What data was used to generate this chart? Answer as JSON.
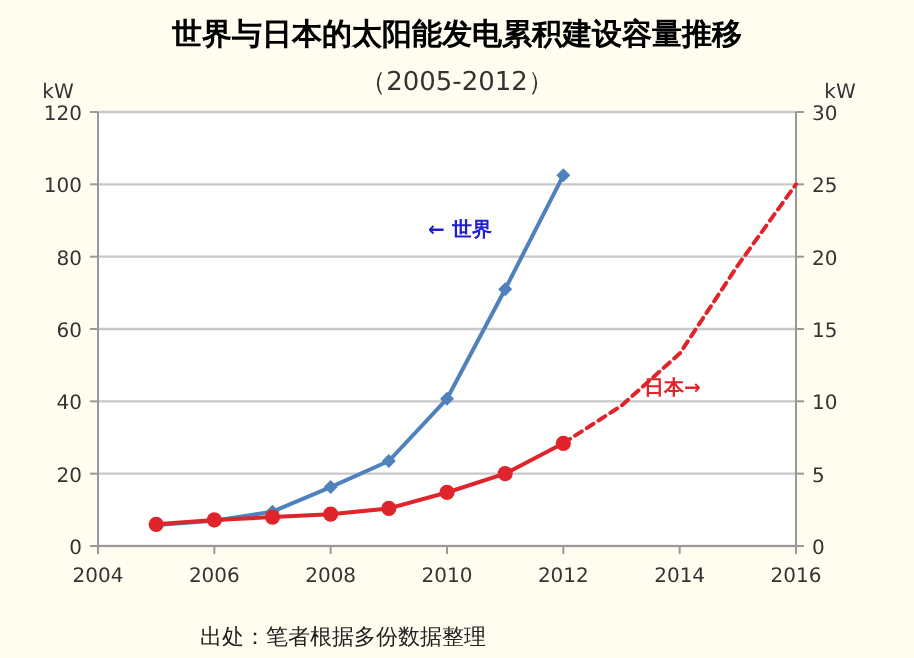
{
  "chart_data": {
    "type": "line",
    "title": "世界与日本的太阳能发电累积建设容量推移",
    "subtitle": "（2005-2012）",
    "ylabel": "kW",
    "y2label": "kW",
    "xlim": [
      2004,
      2016
    ],
    "xticks": [
      2004,
      2006,
      2008,
      2010,
      2012,
      2014,
      2016
    ],
    "ylim": [
      0,
      120
    ],
    "yticks": [
      0,
      20,
      40,
      60,
      80,
      100,
      120
    ],
    "y2lim": [
      0,
      30
    ],
    "y2ticks": [
      0,
      5,
      10,
      15,
      20,
      25,
      30
    ],
    "grid": "y",
    "series": [
      {
        "color": "#4f81bd",
        "marker": "diamond",
        "line_style": "solid",
        "x": [
          2005,
          2006,
          2007,
          2008,
          2009,
          2010,
          2011,
          2012
        ],
        "values": [
          5.8,
          7,
          9.5,
          16.3,
          23.5,
          40.7,
          71,
          102.5
        ]
      },
      {
        "color": "#e0242b",
        "marker": "circle",
        "line_style": "solid",
        "axis": "y2",
        "x": [
          2005,
          2006,
          2007,
          2008,
          2009,
          2010,
          2011,
          2012
        ],
        "values": [
          1.5,
          1.8,
          2,
          2.2,
          2.6,
          3.7,
          5,
          7.1
        ]
      },
      {
        "color": "#e0242b",
        "marker": "none",
        "line_style": "dashed",
        "axis": "y2",
        "x": [
          2012,
          2013,
          2014,
          2015,
          2016
        ],
        "values": [
          7.1,
          9.7,
          13.3,
          19.4,
          25
        ]
      }
    ],
    "annotations": [
      "← 世界",
      "日本→",
      "出处：笔者根据多份数据整理"
    ]
  }
}
